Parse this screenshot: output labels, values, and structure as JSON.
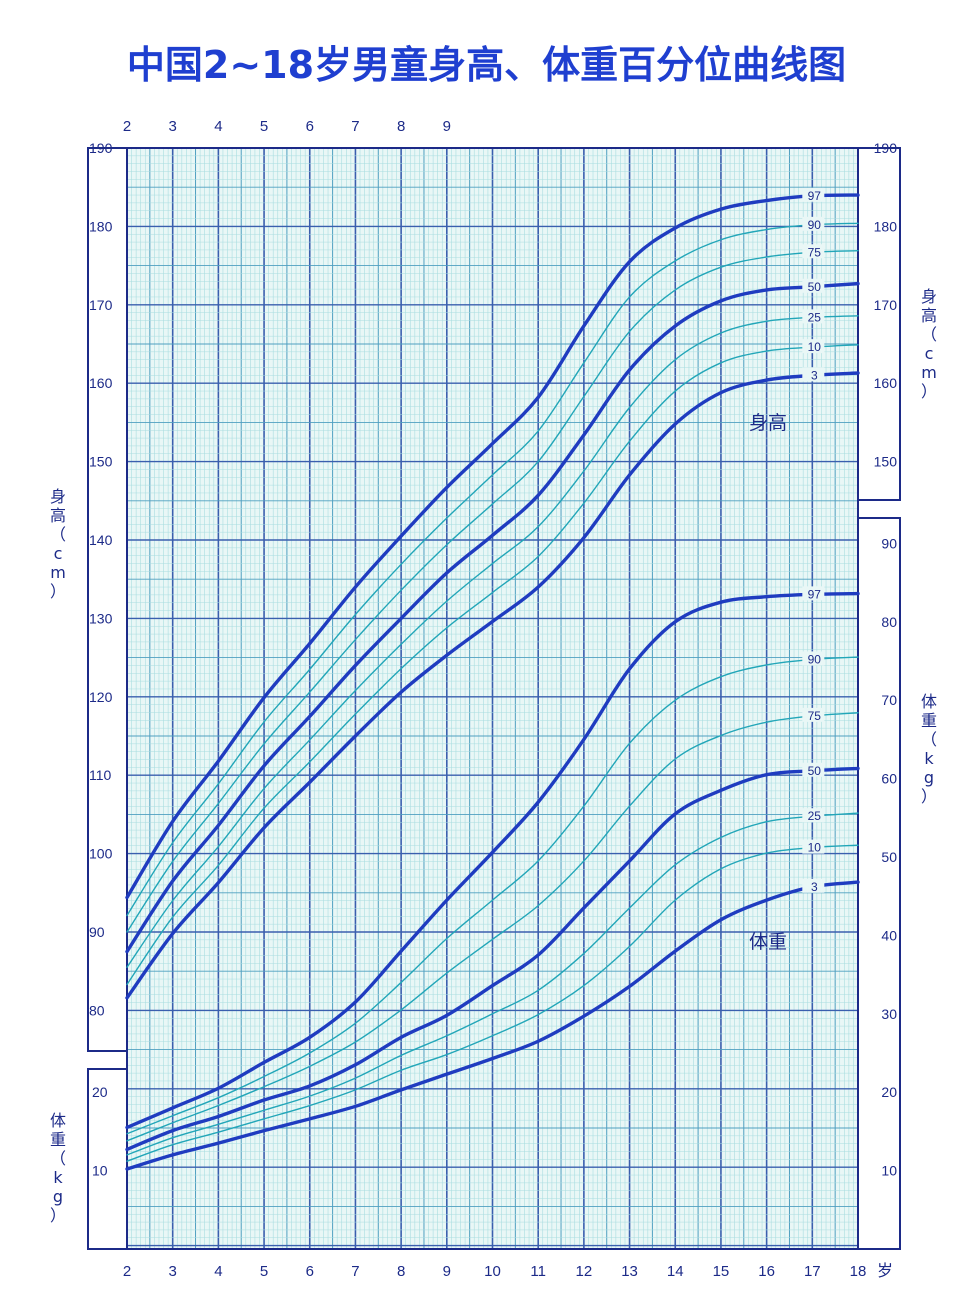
{
  "title": "中国2~18岁男童身高、体重百分位曲线图",
  "chart_data": {
    "type": "line",
    "title": "中国2~18岁男童身高、体重百分位曲线图",
    "x_axis": {
      "label": "岁",
      "range": [
        2,
        18
      ],
      "ticks_bottom": [
        "2",
        "3",
        "4",
        "5",
        "6",
        "7",
        "8",
        "9",
        "10",
        "11",
        "12",
        "13",
        "14",
        "15",
        "16",
        "17",
        "18"
      ],
      "ticks_top": [
        "2",
        "3",
        "4",
        "5",
        "6",
        "7",
        "8",
        "9"
      ]
    },
    "height_axis": {
      "label": "身高（cm）",
      "range": [
        70,
        190
      ],
      "ticks": [
        "80",
        "90",
        "100",
        "110",
        "120",
        "130",
        "140",
        "150",
        "160",
        "170",
        "180",
        "190"
      ]
    },
    "weight_axis": {
      "label": "体重（kg）",
      "range": [
        0,
        90
      ],
      "ticks_left": [
        "10",
        "20"
      ],
      "ticks_right": [
        "10",
        "20",
        "30",
        "40",
        "50",
        "60",
        "70",
        "80",
        "90"
      ]
    },
    "region_labels": {
      "height": "身高",
      "weight": "体重"
    },
    "grid": true,
    "x": [
      2,
      3,
      4,
      5,
      6,
      7,
      8,
      9,
      10,
      11,
      12,
      13,
      14,
      15,
      16,
      17,
      18
    ],
    "height_series": [
      {
        "name": "97",
        "bold": true,
        "values": [
          94.4,
          104.1,
          111.8,
          119.9,
          126.8,
          134.0,
          140.5,
          146.7,
          152.3,
          158.2,
          167.3,
          175.5,
          179.8,
          182.2,
          183.3,
          183.9,
          184.0
        ]
      },
      {
        "name": "90",
        "bold": false,
        "values": [
          92.1,
          101.4,
          108.9,
          116.8,
          123.5,
          130.5,
          136.9,
          142.8,
          148.3,
          153.9,
          162.6,
          171.0,
          175.6,
          178.3,
          179.6,
          180.2,
          180.4
        ]
      },
      {
        "name": "75",
        "bold": false,
        "values": [
          90.0,
          99.0,
          106.4,
          114.0,
          120.6,
          127.3,
          133.6,
          139.4,
          144.6,
          150.0,
          158.3,
          166.6,
          171.9,
          174.8,
          176.1,
          176.7,
          176.9
        ]
      },
      {
        "name": "50",
        "bold": true,
        "values": [
          87.5,
          96.5,
          103.6,
          111.2,
          117.5,
          124.0,
          130.0,
          135.8,
          140.6,
          145.7,
          153.4,
          161.7,
          167.3,
          170.5,
          171.9,
          172.3,
          172.7
        ]
      },
      {
        "name": "25",
        "bold": false,
        "values": [
          85.5,
          94.0,
          100.9,
          108.3,
          114.5,
          120.8,
          126.7,
          132.2,
          137.0,
          141.7,
          148.8,
          156.9,
          163.0,
          166.4,
          167.9,
          168.4,
          168.6
        ]
      },
      {
        "name": "10",
        "bold": false,
        "values": [
          83.3,
          91.9,
          98.5,
          105.8,
          111.7,
          117.8,
          123.6,
          128.8,
          133.3,
          137.9,
          144.7,
          152.6,
          159.0,
          162.6,
          164.1,
          164.6,
          164.9
        ]
      },
      {
        "name": "3",
        "bold": true,
        "values": [
          81.6,
          89.8,
          96.3,
          103.3,
          109.1,
          115.0,
          120.6,
          125.3,
          129.6,
          134.0,
          140.3,
          148.3,
          154.8,
          158.8,
          160.4,
          161.0,
          161.3
        ]
      }
    ],
    "weight_series": [
      {
        "name": "97",
        "bold": true,
        "values": [
          15.5,
          18.0,
          20.5,
          23.8,
          27.0,
          31.5,
          38.0,
          44.5,
          50.6,
          57.0,
          65.0,
          74.0,
          80.0,
          82.5,
          83.2,
          83.5,
          83.6
        ]
      },
      {
        "name": "90",
        "bold": false,
        "values": [
          14.7,
          17.0,
          19.3,
          22.0,
          25.0,
          28.8,
          34.0,
          39.6,
          44.5,
          49.5,
          56.5,
          64.5,
          70.0,
          73.0,
          74.5,
          75.2,
          75.5
        ]
      },
      {
        "name": "75",
        "bold": false,
        "values": [
          13.8,
          16.1,
          18.3,
          20.7,
          23.3,
          26.4,
          30.5,
          35.2,
          39.5,
          43.8,
          49.5,
          56.5,
          62.5,
          65.5,
          67.2,
          68.0,
          68.4
        ]
      },
      {
        "name": "50",
        "bold": true,
        "values": [
          12.7,
          15.1,
          16.9,
          19.0,
          20.8,
          23.5,
          27.0,
          29.8,
          33.6,
          37.5,
          43.5,
          49.5,
          55.5,
          58.5,
          60.5,
          61.0,
          61.3
        ]
      },
      {
        "name": "25",
        "bold": false,
        "values": [
          12.0,
          14.2,
          15.9,
          17.7,
          19.5,
          21.8,
          24.7,
          27.2,
          30.0,
          33.0,
          37.7,
          43.5,
          49.0,
          52.5,
          54.5,
          55.2,
          55.6
        ]
      },
      {
        "name": "10",
        "bold": false,
        "values": [
          11.2,
          13.3,
          14.9,
          16.6,
          18.3,
          20.3,
          22.8,
          24.8,
          27.2,
          29.9,
          33.6,
          38.6,
          44.5,
          48.5,
          50.5,
          51.2,
          51.5
        ]
      },
      {
        "name": "3",
        "bold": true,
        "values": [
          10.2,
          12.0,
          13.5,
          15.1,
          16.6,
          18.2,
          20.3,
          22.3,
          24.3,
          26.5,
          29.7,
          33.5,
          38.0,
          42.0,
          44.5,
          46.2,
          46.8
        ]
      }
    ]
  }
}
